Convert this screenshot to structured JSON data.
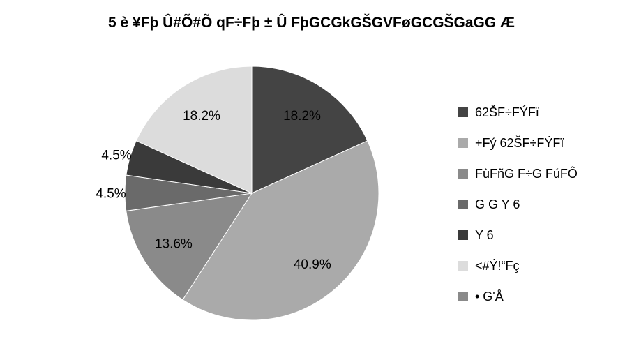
{
  "chart_data": {
    "type": "pie",
    "title": "5 è ¥Fþ Û#Õ#Õ qF÷Fþ ± Û FþGCGkGŠGVFøGCGŠGaGG Æ",
    "categories": [
      "62ŠF÷FÝFï",
      "+Fý 62ŠF÷FÝFï",
      "FùFñG F÷G FúFÔ",
      "G G Y 6",
      "Y 6",
      "<#Ý!“Fç",
      "• G'Å"
    ],
    "values": [
      18.2,
      40.9,
      13.6,
      4.5,
      4.5,
      18.2,
      0
    ],
    "value_labels": [
      "18.2%",
      "40.9%",
      "13.6%",
      "4.5%",
      "4.5%",
      "18.2%",
      ""
    ],
    "colors": [
      "#444444",
      "#aaaaaa",
      "#8a8a8a",
      "#6a6a6a",
      "#3a3a3a",
      "#dcdcdc",
      "#8a8a8a"
    ],
    "start_angle_deg": 0,
    "direction": "clockwise",
    "legend_position": "right"
  }
}
